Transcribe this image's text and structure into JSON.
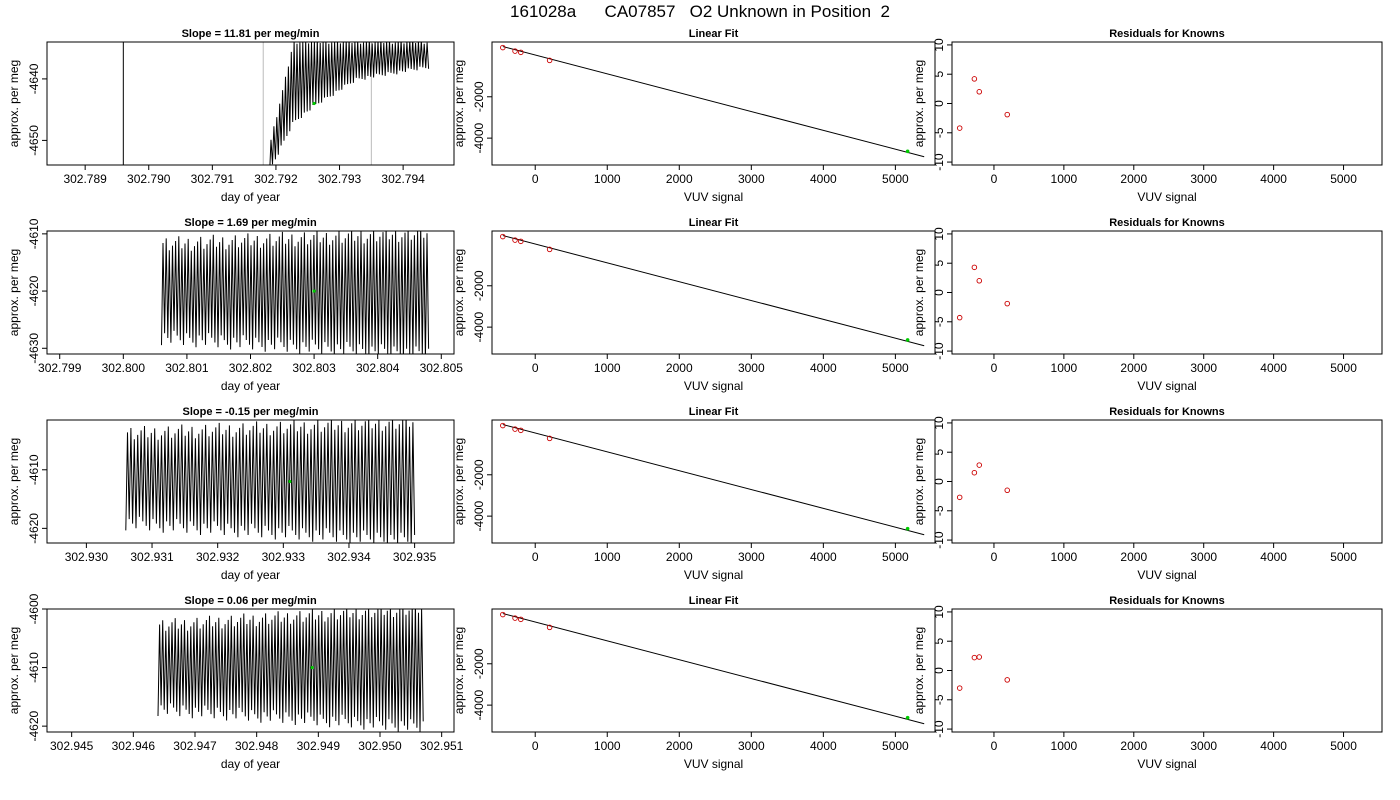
{
  "main_title": "161028a      CA07857   O2 Unknown in Position  2",
  "colors": {
    "line": "#000000",
    "known_point": "#cc0000",
    "unknown_point": "#00cc00",
    "marker_line": "#bbbbbb"
  },
  "rows": [
    {
      "timeseries": {
        "title": "Slope =  11.81  per meg/min",
        "xlabel": "day of year",
        "ylabel": "approx. per meg",
        "xlim": [
          302.7884,
          302.7948
        ],
        "ylim": [
          -4654,
          -4634
        ],
        "xticks": [
          302.789,
          302.79,
          302.791,
          302.792,
          302.793,
          302.794
        ],
        "xtick_labels": [
          "302.789",
          "302.790",
          "302.791",
          "302.792",
          "302.793",
          "302.794"
        ],
        "yticks": [
          -4650,
          -4640
        ],
        "ytick_labels": [
          "-4650",
          "-4640"
        ],
        "vlines": [
          302.7896,
          302.7918,
          302.7935
        ],
        "trace": {
          "x_start": 302.7919,
          "x_end": 302.7944,
          "cycles": 55,
          "lower": [
            [
              0,
              -4655
            ],
            [
              0.15,
              -4647
            ],
            [
              0.3,
              -4644
            ],
            [
              0.55,
              -4640
            ],
            [
              1,
              -4638
            ]
          ],
          "upper": [
            [
              0,
              -4651
            ],
            [
              0.1,
              -4640
            ],
            [
              0.15,
              -4634
            ],
            [
              1,
              -4634
            ]
          ]
        },
        "marker": [
          302.7926,
          -4644
        ]
      },
      "fit": {
        "title": "Linear Fit",
        "xlabel": "VUV signal",
        "ylabel": "approx. per meg",
        "xlim": [
          -600,
          5550
        ],
        "ylim": [
          -5300,
          650
        ],
        "xticks": [
          0,
          1000,
          2000,
          3000,
          4000,
          5000
        ],
        "xtick_labels": [
          "0",
          "1000",
          "2000",
          "3000",
          "4000",
          "5000"
        ],
        "yticks": [
          -4000,
          -2000
        ],
        "ytick_labels": [
          "-4000",
          "-2000"
        ],
        "line": [
          [
            -450,
            430
          ],
          [
            5400,
            -4900
          ]
        ],
        "knowns": [
          [
            -450,
            380
          ],
          [
            -280,
            210
          ],
          [
            -200,
            150
          ],
          [
            200,
            -240
          ]
        ],
        "unknown": [
          5170,
          -4640
        ]
      },
      "resid": {
        "title": "Residuals for Knowns",
        "xlabel": "VUV signal",
        "ylabel": "approx. per meg",
        "xlim": [
          -600,
          5550
        ],
        "ylim": [
          -10.5,
          10.5
        ],
        "xticks": [
          0,
          1000,
          2000,
          3000,
          4000,
          5000
        ],
        "xtick_labels": [
          "0",
          "1000",
          "2000",
          "3000",
          "4000",
          "5000"
        ],
        "yticks": [
          -10,
          -5,
          0,
          5,
          10
        ],
        "ytick_labels": [
          "-10",
          "-5",
          "0",
          "5",
          "10"
        ],
        "points": [
          [
            -490,
            -4.2
          ],
          [
            -280,
            4.2
          ],
          [
            -210,
            2.0
          ],
          [
            190,
            -1.9
          ]
        ]
      }
    },
    {
      "timeseries": {
        "title": "Slope =  1.69  per meg/min",
        "xlabel": "day of year",
        "ylabel": "approx. per meg",
        "xlim": [
          302.7988,
          302.8052
        ],
        "ylim": [
          -4631,
          -4609.5
        ],
        "xticks": [
          302.799,
          302.8,
          302.801,
          302.802,
          302.803,
          302.804,
          302.805
        ],
        "xtick_labels": [
          "302.799",
          "302.800",
          "302.801",
          "302.802",
          "302.803",
          "302.804",
          "302.805"
        ],
        "yticks": [
          -4630,
          -4620,
          -4610
        ],
        "ytick_labels": [
          "-4630",
          "-4620",
          "-4610"
        ],
        "vlines": [],
        "trace": {
          "x_start": 302.8006,
          "x_end": 302.8048,
          "cycles": 85,
          "lower": [
            [
              0,
              -4628
            ],
            [
              1,
              -4631
            ]
          ],
          "upper": [
            [
              0,
              -4612
            ],
            [
              1,
              -4610
            ]
          ]
        },
        "marker": [
          302.803,
          -4620
        ]
      },
      "fit": {
        "title": "Linear Fit",
        "xlabel": "VUV signal",
        "ylabel": "approx. per meg",
        "xlim": [
          -600,
          5550
        ],
        "ylim": [
          -5300,
          650
        ],
        "xticks": [
          0,
          1000,
          2000,
          3000,
          4000,
          5000
        ],
        "xtick_labels": [
          "0",
          "1000",
          "2000",
          "3000",
          "4000",
          "5000"
        ],
        "yticks": [
          -4000,
          -2000
        ],
        "ytick_labels": [
          "-4000",
          "-2000"
        ],
        "line": [
          [
            -450,
            430
          ],
          [
            5400,
            -4900
          ]
        ],
        "knowns": [
          [
            -450,
            380
          ],
          [
            -280,
            210
          ],
          [
            -200,
            150
          ],
          [
            200,
            -240
          ]
        ],
        "unknown": [
          5170,
          -4620
        ]
      },
      "resid": {
        "title": "Residuals for Knowns",
        "xlabel": "VUV signal",
        "ylabel": "approx. per meg",
        "xlim": [
          -600,
          5550
        ],
        "ylim": [
          -10.5,
          10.5
        ],
        "xticks": [
          0,
          1000,
          2000,
          3000,
          4000,
          5000
        ],
        "xtick_labels": [
          "0",
          "1000",
          "2000",
          "3000",
          "4000",
          "5000"
        ],
        "yticks": [
          -10,
          -5,
          0,
          5,
          10
        ],
        "ytick_labels": [
          "-10",
          "-5",
          "0",
          "5",
          "10"
        ],
        "points": [
          [
            -490,
            -4.3
          ],
          [
            -280,
            4.3
          ],
          [
            -210,
            2.0
          ],
          [
            190,
            -1.9
          ]
        ]
      }
    },
    {
      "timeseries": {
        "title": "Slope =  -0.15  per meg/min",
        "xlabel": "day of year",
        "ylabel": "approx. per meg",
        "xlim": [
          302.9294,
          302.9356
        ],
        "ylim": [
          -4622.5,
          -4601.5
        ],
        "xticks": [
          302.93,
          302.931,
          302.932,
          302.933,
          302.934,
          302.935
        ],
        "xtick_labels": [
          "302.930",
          "302.931",
          "302.932",
          "302.933",
          "302.934",
          "302.935"
        ],
        "yticks": [
          -4620,
          -4610
        ],
        "ytick_labels": [
          "-4620",
          "-4610"
        ],
        "vlines": [],
        "trace": {
          "x_start": 302.9306,
          "x_end": 302.935,
          "cycles": 85,
          "lower": [
            [
              0,
              -4619
            ],
            [
              1,
              -4622
            ]
          ],
          "upper": [
            [
              0,
              -4604
            ],
            [
              1,
              -4602
            ]
          ]
        },
        "marker": [
          302.9331,
          -4612
        ]
      },
      "fit": {
        "title": "Linear Fit",
        "xlabel": "VUV signal",
        "ylabel": "approx. per meg",
        "xlim": [
          -600,
          5550
        ],
        "ylim": [
          -5300,
          650
        ],
        "xticks": [
          0,
          1000,
          2000,
          3000,
          4000,
          5000
        ],
        "xtick_labels": [
          "0",
          "1000",
          "2000",
          "3000",
          "4000",
          "5000"
        ],
        "yticks": [
          -4000,
          -2000
        ],
        "ytick_labels": [
          "-4000",
          "-2000"
        ],
        "line": [
          [
            -450,
            430
          ],
          [
            5400,
            -4900
          ]
        ],
        "knowns": [
          [
            -450,
            380
          ],
          [
            -280,
            210
          ],
          [
            -200,
            150
          ],
          [
            200,
            -240
          ]
        ],
        "unknown": [
          5170,
          -4610
        ]
      },
      "resid": {
        "title": "Residuals for Knowns",
        "xlabel": "VUV signal",
        "ylabel": "approx. per meg",
        "xlim": [
          -600,
          5550
        ],
        "ylim": [
          -10.5,
          10.5
        ],
        "xticks": [
          0,
          1000,
          2000,
          3000,
          4000,
          5000
        ],
        "xtick_labels": [
          "0",
          "1000",
          "2000",
          "3000",
          "4000",
          "5000"
        ],
        "yticks": [
          -10,
          -5,
          0,
          5,
          10
        ],
        "ytick_labels": [
          "-10",
          "-5",
          "0",
          "5",
          "10"
        ],
        "points": [
          [
            -490,
            -2.7
          ],
          [
            -280,
            1.5
          ],
          [
            -210,
            2.8
          ],
          [
            190,
            -1.5
          ]
        ]
      }
    },
    {
      "timeseries": {
        "title": "Slope =  0.06  per meg/min",
        "xlabel": "day of year",
        "ylabel": "approx. per meg",
        "xlim": [
          302.9446,
          302.9512
        ],
        "ylim": [
          -4621,
          -4600
        ],
        "xticks": [
          302.945,
          302.946,
          302.947,
          302.948,
          302.949,
          302.95,
          302.951
        ],
        "xtick_labels": [
          "302.945",
          "302.946",
          "302.947",
          "302.948",
          "302.949",
          "302.950",
          "302.951"
        ],
        "yticks": [
          -4620,
          -4610,
          -4600
        ],
        "ytick_labels": [
          "-4620",
          "-4610",
          "-4600"
        ],
        "vlines": [],
        "trace": {
          "x_start": 302.9464,
          "x_end": 302.9507,
          "cycles": 85,
          "lower": [
            [
              0,
              -4617
            ],
            [
              1,
              -4620
            ]
          ],
          "upper": [
            [
              0,
              -4603
            ],
            [
              1,
              -4600
            ]
          ]
        },
        "marker": [
          302.9489,
          -4610
        ]
      },
      "fit": {
        "title": "Linear Fit",
        "xlabel": "VUV signal",
        "ylabel": "approx. per meg",
        "xlim": [
          -600,
          5550
        ],
        "ylim": [
          -5300,
          650
        ],
        "xticks": [
          0,
          1000,
          2000,
          3000,
          4000,
          5000
        ],
        "xtick_labels": [
          "0",
          "1000",
          "2000",
          "3000",
          "4000",
          "5000"
        ],
        "yticks": [
          -4000,
          -2000
        ],
        "ytick_labels": [
          "-4000",
          "-2000"
        ],
        "line": [
          [
            -450,
            430
          ],
          [
            5400,
            -4900
          ]
        ],
        "knowns": [
          [
            -450,
            380
          ],
          [
            -280,
            210
          ],
          [
            -200,
            150
          ],
          [
            200,
            -240
          ]
        ],
        "unknown": [
          5170,
          -4610
        ]
      },
      "resid": {
        "title": "Residuals for Knowns",
        "xlabel": "VUV signal",
        "ylabel": "approx. per meg",
        "xlim": [
          -600,
          5550
        ],
        "ylim": [
          -10.5,
          10.5
        ],
        "xticks": [
          0,
          1000,
          2000,
          3000,
          4000,
          5000
        ],
        "xtick_labels": [
          "0",
          "1000",
          "2000",
          "3000",
          "4000",
          "5000"
        ],
        "yticks": [
          -10,
          -5,
          0,
          5,
          10
        ],
        "ytick_labels": [
          "-10",
          "-5",
          "0",
          "5",
          "10"
        ],
        "points": [
          [
            -490,
            -3.0
          ],
          [
            -280,
            2.2
          ],
          [
            -210,
            2.3
          ],
          [
            190,
            -1.6
          ]
        ]
      }
    }
  ],
  "chart_data": [
    {
      "type": "line",
      "title": "Slope =  11.81  per meg/min",
      "xlabel": "day of year",
      "ylabel": "approx. per meg",
      "xlim": [
        302.7884,
        302.7948
      ],
      "ylim": [
        -4654,
        -4634
      ],
      "grid": false
    },
    {
      "type": "line",
      "title": "Linear Fit",
      "xlabel": "VUV signal",
      "ylabel": "approx. per meg",
      "series": [
        {
          "values": [
            [
              -450,
              380
            ],
            [
              -280,
              210
            ],
            [
              -200,
              150
            ],
            [
              200,
              -240
            ]
          ]
        },
        {
          "values": [
            [
              5170,
              -4640
            ]
          ]
        }
      ]
    },
    {
      "type": "scatter",
      "title": "Residuals for Knowns",
      "xlabel": "VUV signal",
      "ylabel": "approx. per meg",
      "x": [
        -490,
        -280,
        -210,
        190
      ],
      "y": [
        -4.2,
        4.2,
        2.0,
        -1.9
      ]
    },
    {
      "type": "line",
      "title": "Slope =  1.69  per meg/min",
      "xlabel": "day of year",
      "ylabel": "approx. per meg",
      "xlim": [
        302.7988,
        302.8052
      ],
      "ylim": [
        -4631,
        -4609.5
      ]
    },
    {
      "type": "line",
      "title": "Linear Fit",
      "xlabel": "VUV signal",
      "ylabel": "approx. per meg",
      "series": [
        {
          "values": [
            [
              -450,
              380
            ],
            [
              -280,
              210
            ],
            [
              -200,
              150
            ],
            [
              200,
              -240
            ]
          ]
        },
        {
          "values": [
            [
              5170,
              -4620
            ]
          ]
        }
      ]
    },
    {
      "type": "scatter",
      "title": "Residuals for Knowns",
      "xlabel": "VUV signal",
      "ylabel": "approx. per meg",
      "x": [
        -490,
        -280,
        -210,
        190
      ],
      "y": [
        -4.3,
        4.3,
        2.0,
        -1.9
      ]
    },
    {
      "type": "line",
      "title": "Slope =  -0.15  per meg/min",
      "xlabel": "day of year",
      "ylabel": "approx. per meg",
      "xlim": [
        302.9294,
        302.9356
      ],
      "ylim": [
        -4622.5,
        -4601.5
      ]
    },
    {
      "type": "line",
      "title": "Linear Fit",
      "xlabel": "VUV signal",
      "ylabel": "approx. per meg",
      "series": [
        {
          "values": [
            [
              -450,
              380
            ],
            [
              -280,
              210
            ],
            [
              -200,
              150
            ],
            [
              200,
              -240
            ]
          ]
        },
        {
          "values": [
            [
              5170,
              -4610
            ]
          ]
        }
      ]
    },
    {
      "type": "scatter",
      "title": "Residuals for Knowns",
      "xlabel": "VUV signal",
      "ylabel": "approx. per meg",
      "x": [
        -490,
        -280,
        -210,
        190
      ],
      "y": [
        -2.7,
        1.5,
        2.8,
        -1.5
      ]
    },
    {
      "type": "line",
      "title": "Slope =  0.06  per meg/min",
      "xlabel": "day of year",
      "ylabel": "approx. per meg",
      "xlim": [
        302.9446,
        302.9512
      ],
      "ylim": [
        -4621,
        -4600
      ]
    },
    {
      "type": "line",
      "title": "Linear Fit",
      "xlabel": "VUV signal",
      "ylabel": "approx. per meg",
      "series": [
        {
          "values": [
            [
              -450,
              380
            ],
            [
              -280,
              210
            ],
            [
              -200,
              150
            ],
            [
              200,
              -240
            ]
          ]
        },
        {
          "values": [
            [
              5170,
              -4610
            ]
          ]
        }
      ]
    },
    {
      "type": "scatter",
      "title": "Residuals for Knowns",
      "xlabel": "VUV signal",
      "ylabel": "approx. per meg",
      "x": [
        -490,
        -280,
        -210,
        190
      ],
      "y": [
        -3.0,
        2.2,
        2.3,
        -1.6
      ]
    }
  ]
}
